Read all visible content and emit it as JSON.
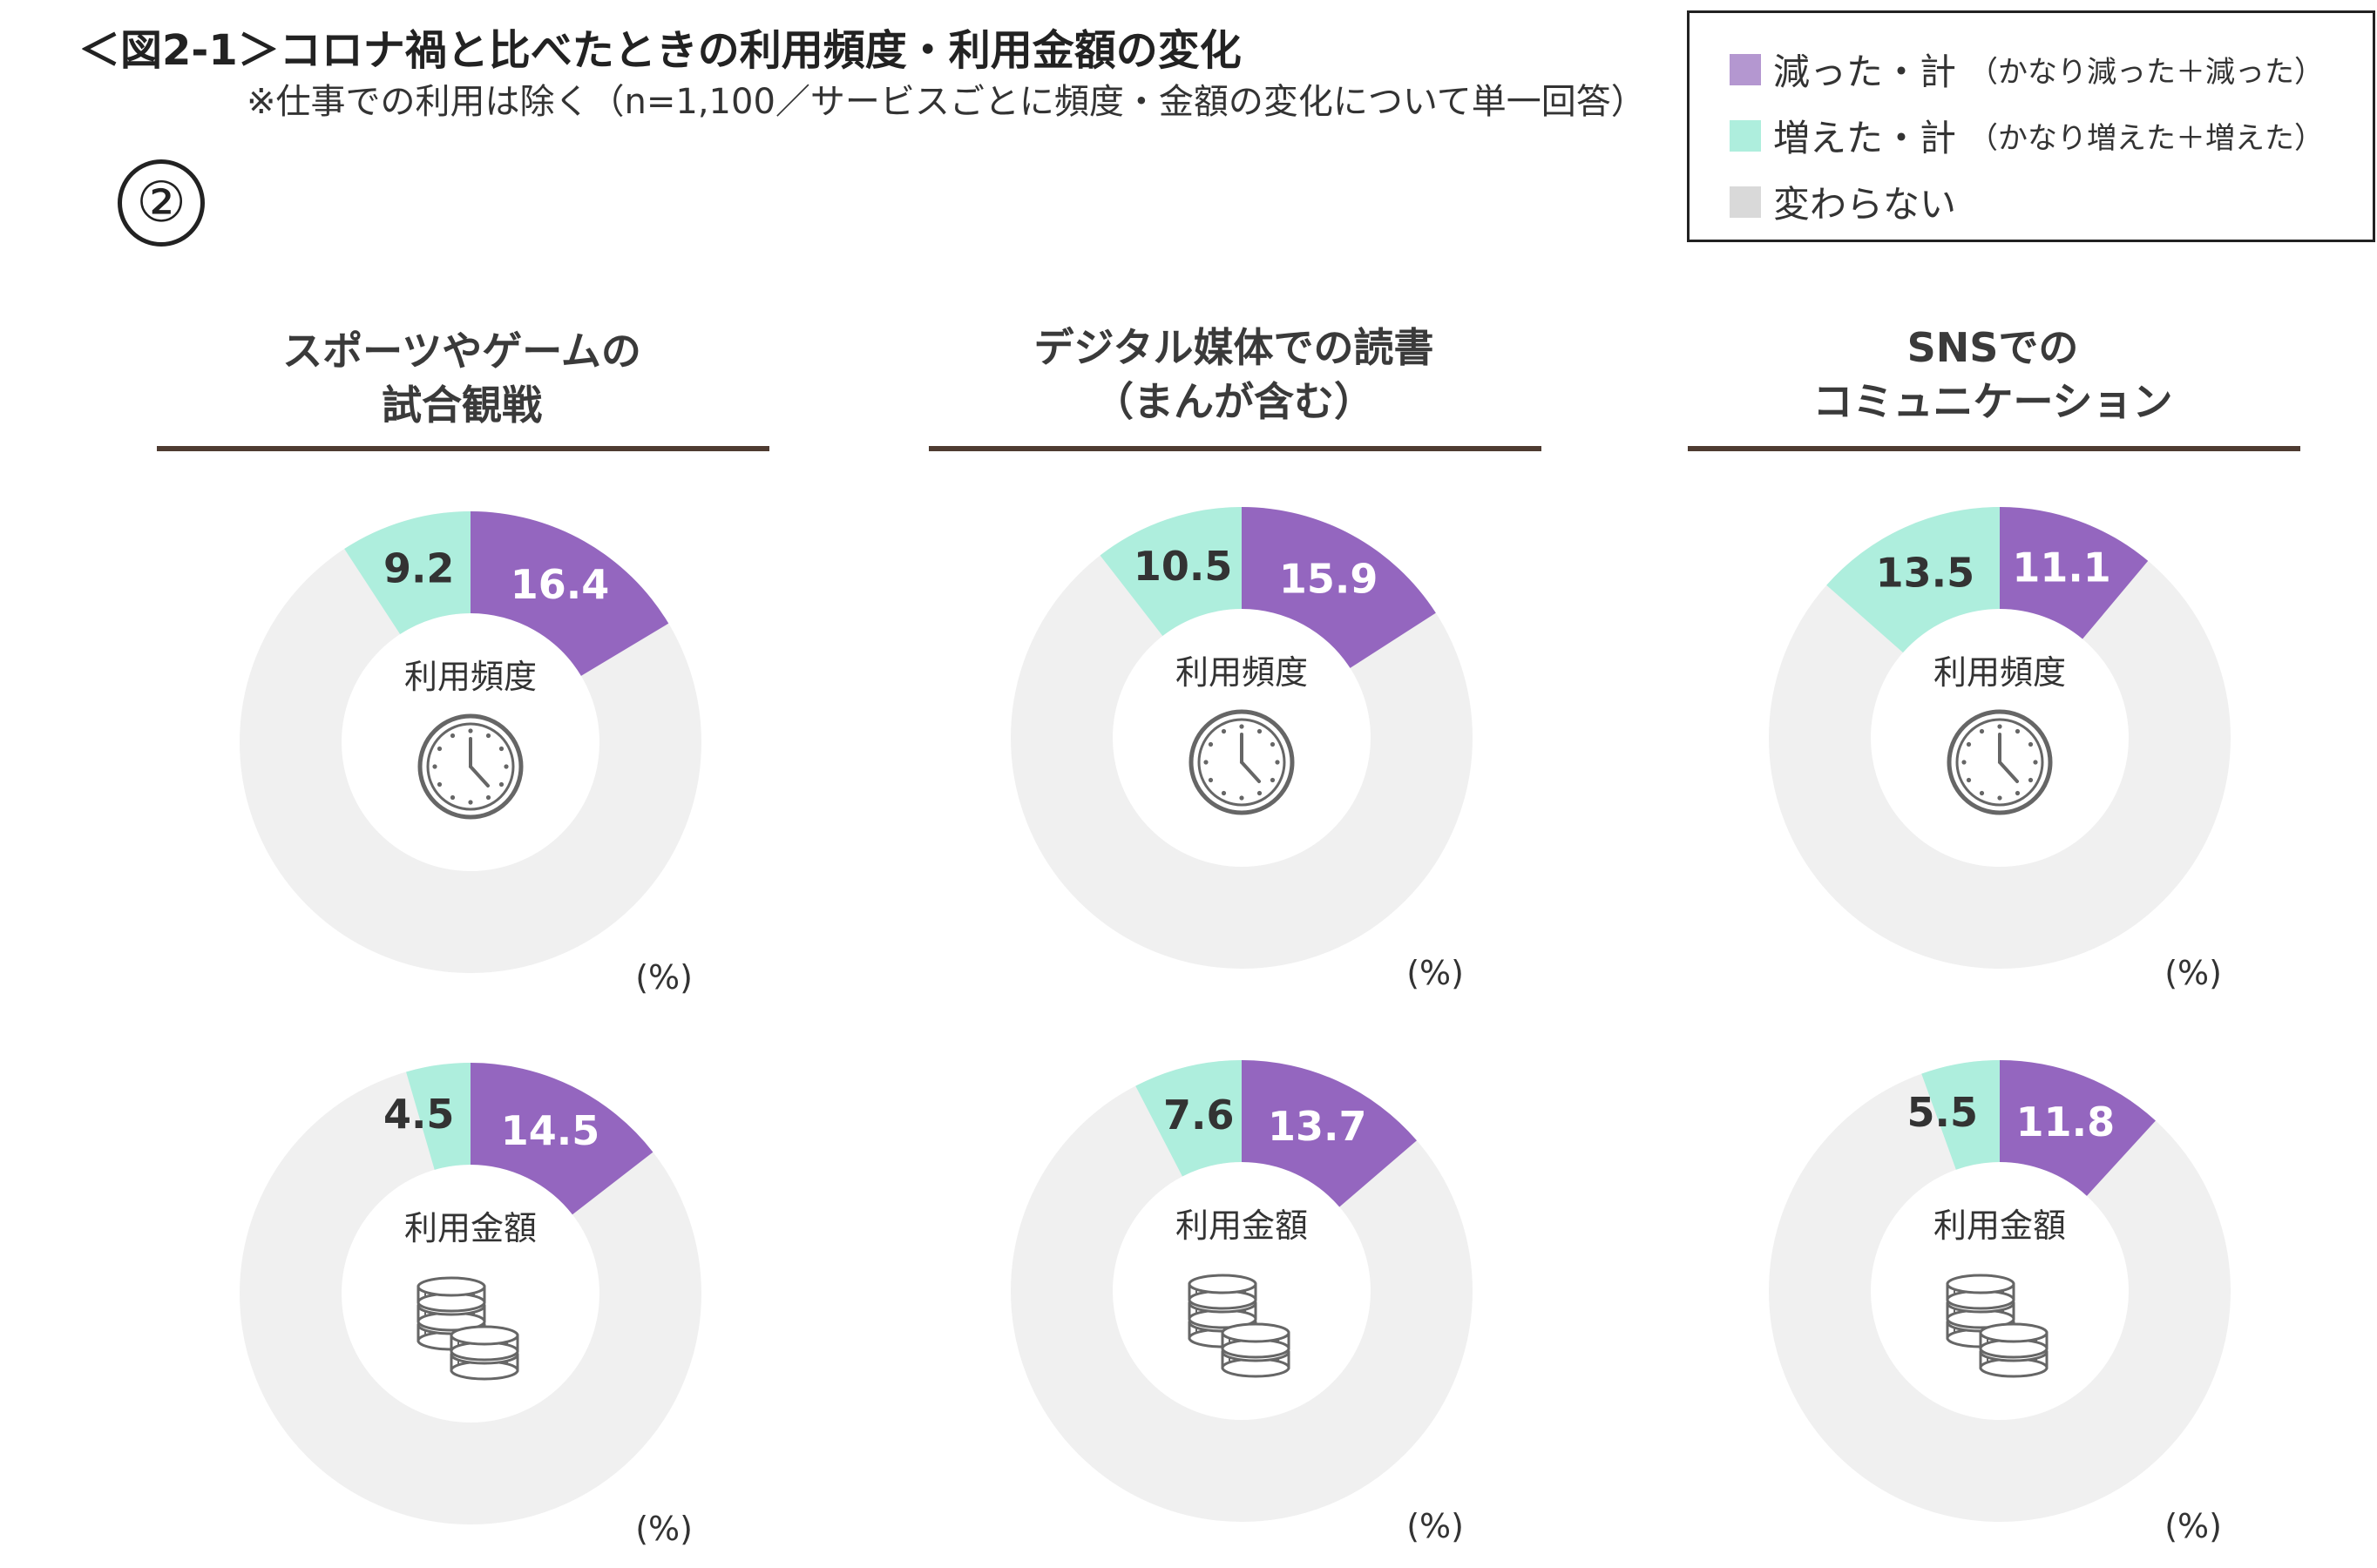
{
  "header": {
    "title": "＜図2-1＞コロナ禍と比べたときの利用頻度・利用金額の変化",
    "subtitle": "※仕事での利用は除く（n=1,100／サービスごとに頻度・金額の変化について単一回答）",
    "panel_number": "②"
  },
  "legend": {
    "items": [
      {
        "label": "減った・計",
        "detail": "（かなり減った＋減った）",
        "color": "#b497d0"
      },
      {
        "label": "増えた・計",
        "detail": "（かなり増えた＋増えた）",
        "color": "#aeeedd"
      },
      {
        "label": "変わらない",
        "detail": "",
        "color": "#d9d9d9"
      }
    ]
  },
  "colors": {
    "decreased": "#9466bf",
    "increased": "#aeeedd",
    "unchanged": "#f0f0f0",
    "icon": "#666666",
    "rule": "#4e3b31"
  },
  "icons": {
    "frequency": "clock-icon",
    "amount": "coins-icon"
  },
  "columns": [
    {
      "title_lines": [
        "スポーツやゲームの",
        "試合観戦"
      ]
    },
    {
      "title_lines": [
        "デジタル媒体での読書",
        "（まんが含む）"
      ]
    },
    {
      "title_lines": [
        "SNSでの",
        "コミュニケーション"
      ]
    }
  ],
  "chart_data": [
    {
      "type": "pie",
      "variant": "donut",
      "group": "スポーツやゲームの試合観戦",
      "center_label": "利用頻度",
      "unit_label": "(%)",
      "slices": [
        {
          "legend": "減った・計",
          "value": 16.4
        },
        {
          "legend": "増えた・計",
          "value": 9.2
        }
      ]
    },
    {
      "type": "pie",
      "variant": "donut",
      "group": "デジタル媒体での読書（まんが含む）",
      "center_label": "利用頻度",
      "unit_label": "(%)",
      "slices": [
        {
          "legend": "減った・計",
          "value": 15.9
        },
        {
          "legend": "増えた・計",
          "value": 10.5
        }
      ]
    },
    {
      "type": "pie",
      "variant": "donut",
      "group": "SNSでのコミュニケーション",
      "center_label": "利用頻度",
      "unit_label": "(%)",
      "slices": [
        {
          "legend": "減った・計",
          "value": 11.1
        },
        {
          "legend": "増えた・計",
          "value": 13.5
        }
      ]
    },
    {
      "type": "pie",
      "variant": "donut",
      "group": "スポーツやゲームの試合観戦",
      "center_label": "利用金額",
      "unit_label": "(%)",
      "slices": [
        {
          "legend": "減った・計",
          "value": 14.5
        },
        {
          "legend": "増えた・計",
          "value": 4.5
        }
      ]
    },
    {
      "type": "pie",
      "variant": "donut",
      "group": "デジタル媒体での読書（まんが含む）",
      "center_label": "利用金額",
      "unit_label": "(%)",
      "slices": [
        {
          "legend": "減った・計",
          "value": 13.7
        },
        {
          "legend": "増えた・計",
          "value": 7.6
        }
      ]
    },
    {
      "type": "pie",
      "variant": "donut",
      "group": "SNSでのコミュニケーション",
      "center_label": "利用金額",
      "unit_label": "(%)",
      "slices": [
        {
          "legend": "減った・計",
          "value": 11.8
        },
        {
          "legend": "増えた・計",
          "value": 5.5
        }
      ]
    }
  ]
}
